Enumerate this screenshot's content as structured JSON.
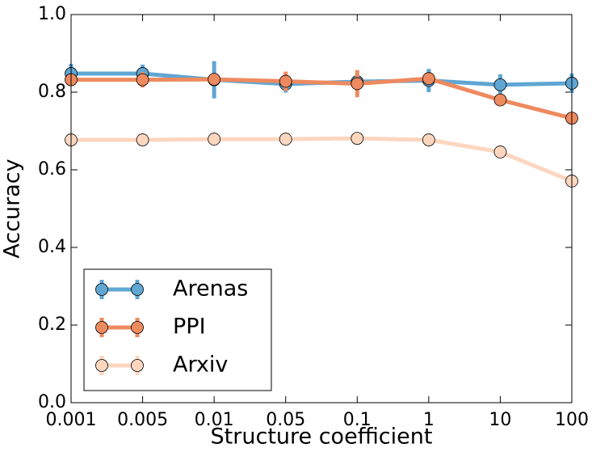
{
  "chart_data": {
    "type": "line_errorbar",
    "xlabel": "Structure coefficient",
    "ylabel": "Accuracy",
    "categories": [
      "0.001",
      "0.005",
      "0.01",
      "0.05",
      "0.1",
      "1",
      "10",
      "100"
    ],
    "ylim": [
      0,
      1
    ],
    "yticks": [
      {
        "value": 0,
        "label": "0.0"
      },
      {
        "value": 0.2,
        "label": "0.2"
      },
      {
        "value": 0.4,
        "label": "0.4"
      },
      {
        "value": 0.6,
        "label": "0.6"
      },
      {
        "value": 0.8,
        "label": "0.8"
      },
      {
        "value": 1,
        "label": "1.0"
      }
    ],
    "legend": "lower left",
    "series": [
      {
        "name": "Arenas",
        "color": "#5fa6d3",
        "values": [
          0.848,
          0.848,
          0.832,
          0.821,
          0.827,
          0.83,
          0.819,
          0.823
        ],
        "errors": [
          0.025,
          0.023,
          0.048,
          0.022,
          0.02,
          0.03,
          0.027,
          0.025
        ]
      },
      {
        "name": "PPI",
        "color": "#ee8a5f",
        "values": [
          0.832,
          0.832,
          0.833,
          0.828,
          0.822,
          0.835,
          0.78,
          0.733
        ],
        "errors": [
          0.01,
          0.02,
          0.01,
          0.025,
          0.035,
          0.01,
          0.005,
          0.005
        ]
      },
      {
        "name": "Arxiv",
        "color": "#fcd6bf",
        "values": [
          0.677,
          0.677,
          0.679,
          0.679,
          0.681,
          0.677,
          0.646,
          0.571
        ],
        "errors": [
          0.005,
          0.005,
          0.005,
          0.005,
          0.005,
          0.005,
          0.005,
          0.005
        ]
      }
    ]
  }
}
